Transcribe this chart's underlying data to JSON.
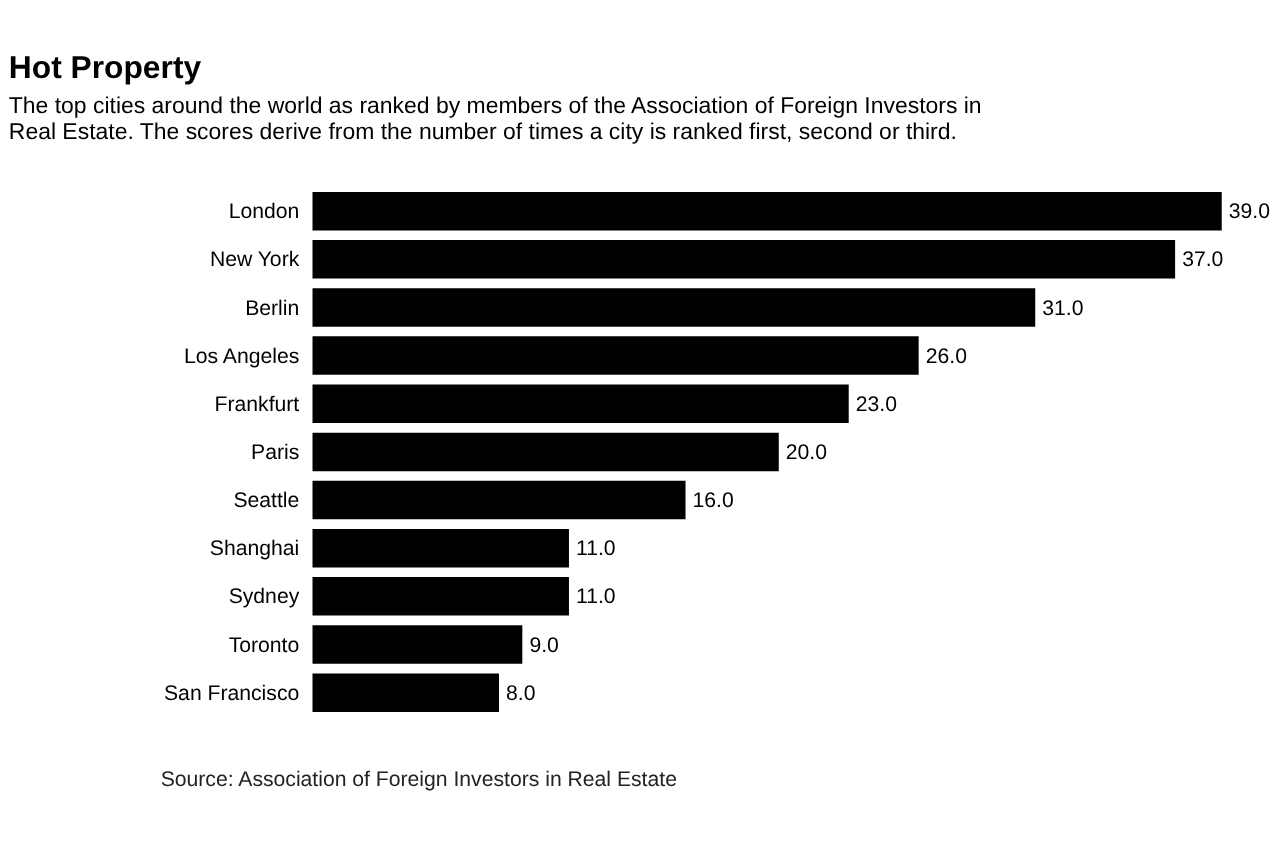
{
  "chart_data": {
    "type": "bar",
    "orientation": "horizontal",
    "title": "Hot Property",
    "subtitle": "The top cities around the world as ranked by members of the Association of Foreign Investors in Real Estate. The scores derive from the number of times a city is ranked first, second or third.",
    "categories": [
      "London",
      "New York",
      "Berlin",
      "Los Angeles",
      "Frankfurt",
      "Paris",
      "Seattle",
      "Shanghai",
      "Sydney",
      "Toronto",
      "San Francisco"
    ],
    "values": [
      39,
      37,
      31,
      26,
      23,
      20,
      16,
      11,
      11,
      9,
      8
    ],
    "value_labels": [
      "39.0",
      "37.0",
      "31.0",
      "26.0",
      "23.0",
      "20.0",
      "16.0",
      "11.0",
      "11.0",
      "9.0",
      "8.0"
    ],
    "color": "#000000",
    "annotations": [
      "Source: Association of Foreign Investors in Real Estate"
    ]
  }
}
